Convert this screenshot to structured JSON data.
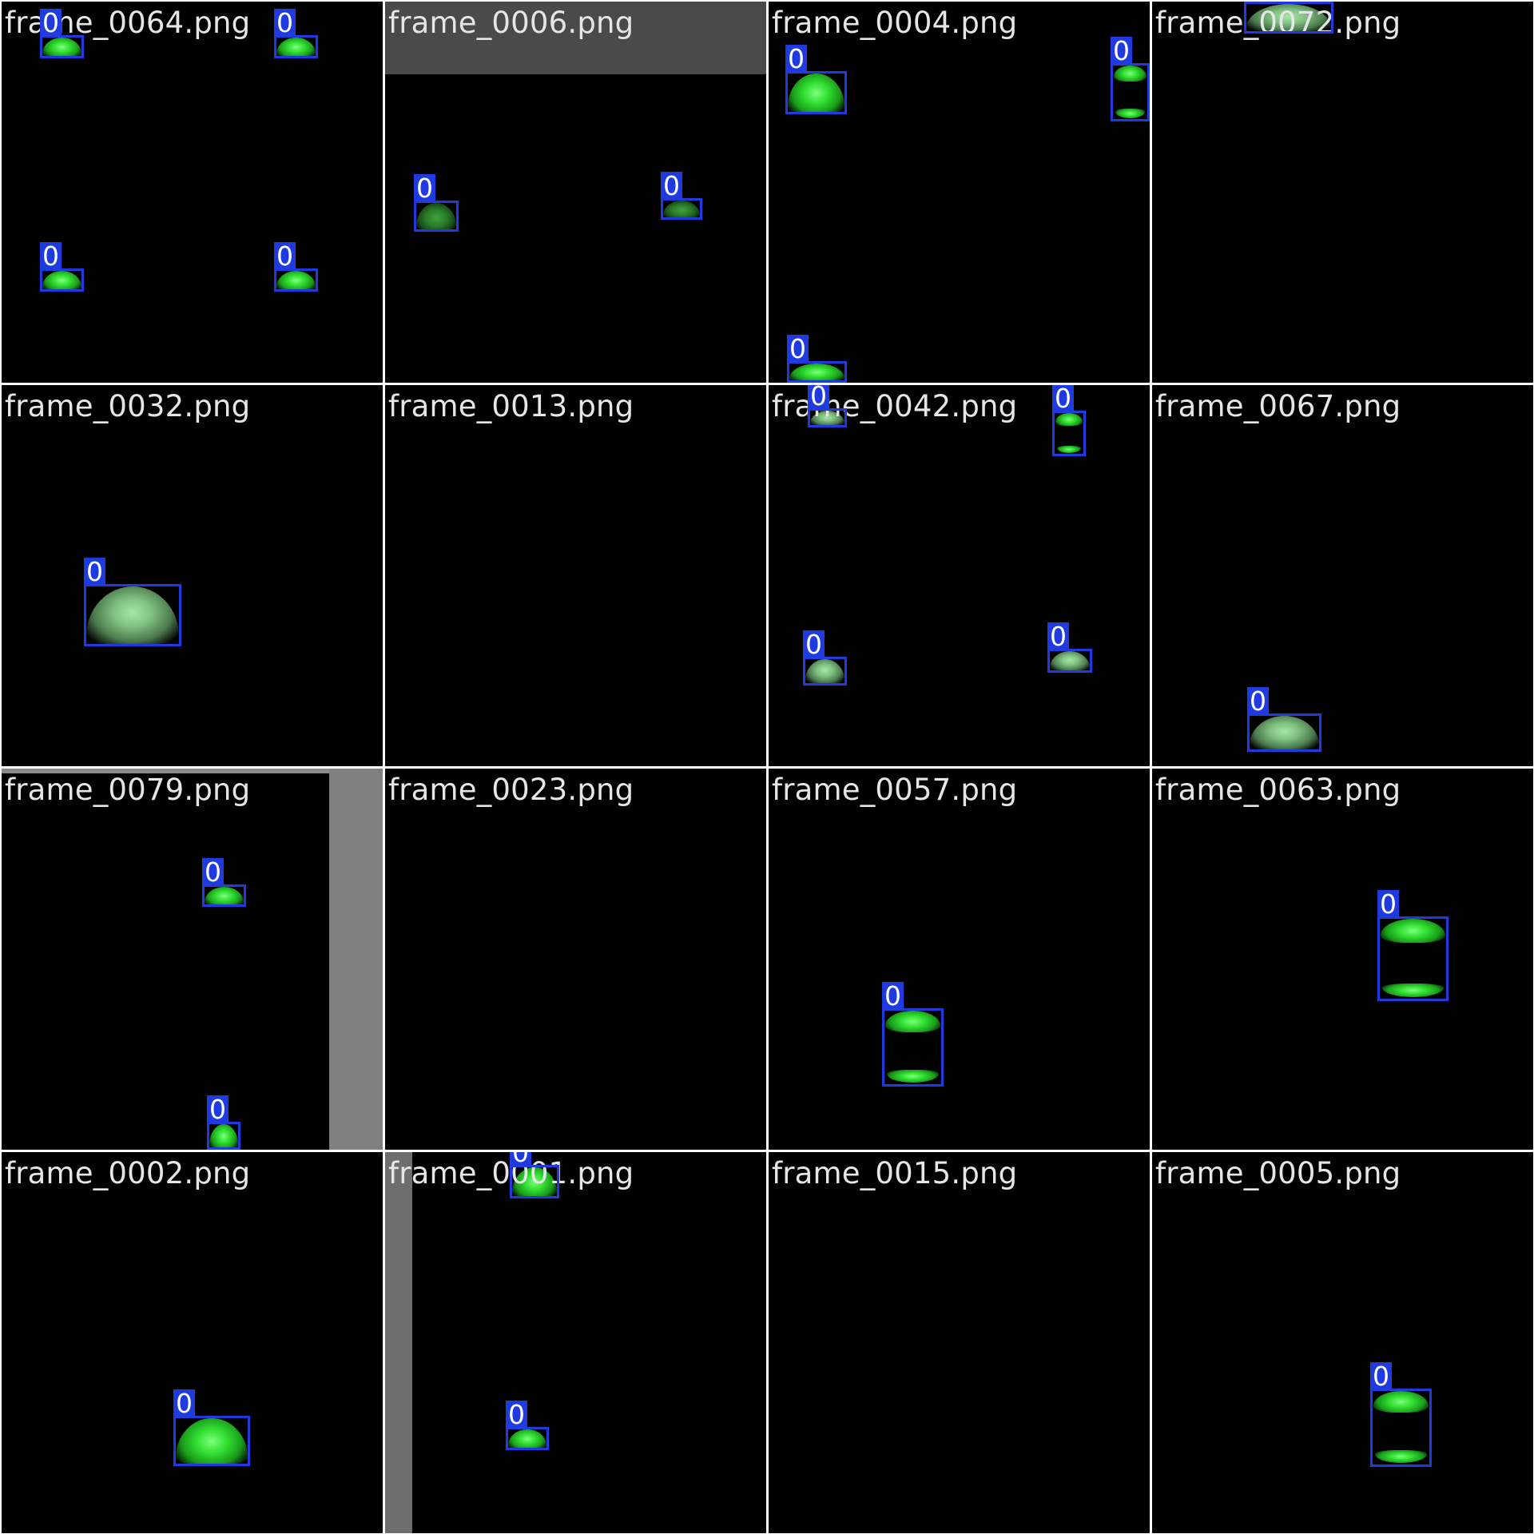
{
  "colors": {
    "background": "#ffffff",
    "tile": "#000000",
    "box": "#1f3be0",
    "title_text": "#e6e6e6",
    "label_text": "#ffffff"
  },
  "tiles": [
    {
      "title": "frame_0064.png",
      "detections": 4
    },
    {
      "title": "frame_0006.png",
      "detections": 2
    },
    {
      "title": "frame_0004.png",
      "detections": 3
    },
    {
      "title": "frame_0072.png",
      "detections": 1
    },
    {
      "title": "frame_0032.png",
      "detections": 1
    },
    {
      "title": "frame_0013.png",
      "detections": 0
    },
    {
      "title": "frame_0042.png",
      "detections": 4
    },
    {
      "title": "frame_0067.png",
      "detections": 1
    },
    {
      "title": "frame_0079.png",
      "detections": 2
    },
    {
      "title": "frame_0023.png",
      "detections": 0
    },
    {
      "title": "frame_0057.png",
      "detections": 1
    },
    {
      "title": "frame_0063.png",
      "detections": 1
    },
    {
      "title": "frame_0002.png",
      "detections": 1
    },
    {
      "title": "frame_0001.png",
      "detections": 2
    },
    {
      "title": "frame_0015.png",
      "detections": 0
    },
    {
      "title": "frame_0005.png",
      "detections": 1
    }
  ],
  "detection_label": "0"
}
